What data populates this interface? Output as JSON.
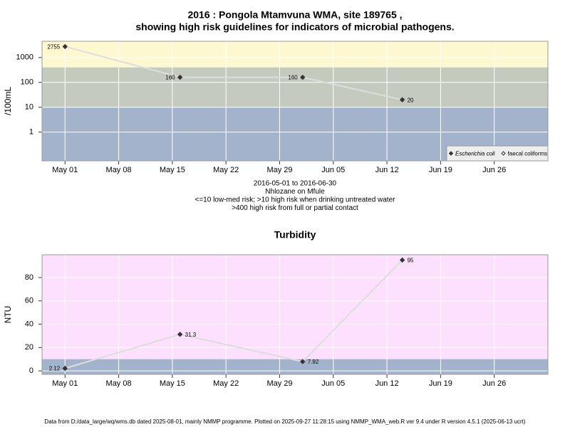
{
  "chart_data": [
    {
      "type": "line",
      "title": [
        "2016 : Pongola Mtamvuna WMA, site 189765 ,",
        "showing high risk guidelines for indicators of microbial pathogens."
      ],
      "ylabel": "/100mL",
      "notes": [
        "2016-05-01 to 2016-06-30",
        "Nhlozane on Mfule",
        "<=10 low-med risk; >10 high risk when drinking untreated water",
        ">400 high risk from full or partial contact"
      ],
      "x": [
        "2016-05-01",
        "2016-05-16",
        "2016-06-01",
        "2016-06-14"
      ],
      "series": [
        {
          "name": "Escherichia coli",
          "color": "#333333",
          "marker": "filled",
          "values": [
            2755,
            160,
            160,
            20
          ]
        },
        {
          "name": "faecal coliforms",
          "color": "#333333",
          "marker": "open",
          "values": [
            null,
            null,
            null,
            null
          ]
        }
      ],
      "line_color": "#dddddd",
      "log_y": true,
      "ylim": [
        0.07,
        4500
      ],
      "yticks": [
        1,
        10,
        100,
        1000
      ],
      "xlim": [
        "2016-04-28",
        "2016-07-03"
      ],
      "xticks": [
        {
          "value": "2016-05-01",
          "label": "May 01"
        },
        {
          "value": "2016-05-08",
          "label": "May 08"
        },
        {
          "value": "2016-05-15",
          "label": "May 15"
        },
        {
          "value": "2016-05-22",
          "label": "May 22"
        },
        {
          "value": "2016-05-29",
          "label": "May 29"
        },
        {
          "value": "2016-06-05",
          "label": "Jun 05"
        },
        {
          "value": "2016-06-12",
          "label": "Jun 12"
        },
        {
          "value": "2016-06-19",
          "label": "Jun 19"
        },
        {
          "value": "2016-06-26",
          "label": "Jun 26"
        }
      ],
      "bands": [
        {
          "from": 400,
          "to": 4500,
          "color": "#fdf8d0"
        },
        {
          "from": 10,
          "to": 400,
          "color": "#c4cbbe"
        },
        {
          "from": 0.07,
          "to": 10,
          "color": "#a3b3cc"
        }
      ],
      "grid": true,
      "legend": "lower right"
    },
    {
      "type": "line",
      "title": [
        "Turbidity"
      ],
      "ylabel": "NTU",
      "x": [
        "2016-05-01",
        "2016-05-16",
        "2016-06-01",
        "2016-06-14"
      ],
      "series": [
        {
          "color": "#333333",
          "marker": "filled",
          "values": [
            2.12,
            31.3,
            7.92,
            95
          ]
        }
      ],
      "line_color": "#dddddd",
      "log_y": false,
      "ylim": [
        -3,
        99.5
      ],
      "yticks": [
        0,
        20,
        40,
        60,
        80
      ],
      "xlim": [
        "2016-04-28",
        "2016-07-03"
      ],
      "xticks": [
        {
          "value": "2016-05-01",
          "label": "May 01"
        },
        {
          "value": "2016-05-08",
          "label": "May 08"
        },
        {
          "value": "2016-05-15",
          "label": "May 15"
        },
        {
          "value": "2016-05-22",
          "label": "May 22"
        },
        {
          "value": "2016-05-29",
          "label": "May 29"
        },
        {
          "value": "2016-06-05",
          "label": "Jun 05"
        },
        {
          "value": "2016-06-12",
          "label": "Jun 12"
        },
        {
          "value": "2016-06-19",
          "label": "Jun 19"
        },
        {
          "value": "2016-06-26",
          "label": "Jun 26"
        }
      ],
      "bands": [
        {
          "from": 10,
          "to": 99.5,
          "color": "#fde0fd"
        },
        {
          "from": -3,
          "to": 10,
          "color": "#a3b3cc"
        }
      ],
      "grid": true
    }
  ],
  "footer": "Data from D:/data_large/wq/wms.db dated 2025-08-01, mainly NMMP programme. Plotted on 2025-09-27 11:28:15 using NMMP_WMA_web.R ver 9.4 under R version 4.5.1 (2025-06-13 ucrt)"
}
